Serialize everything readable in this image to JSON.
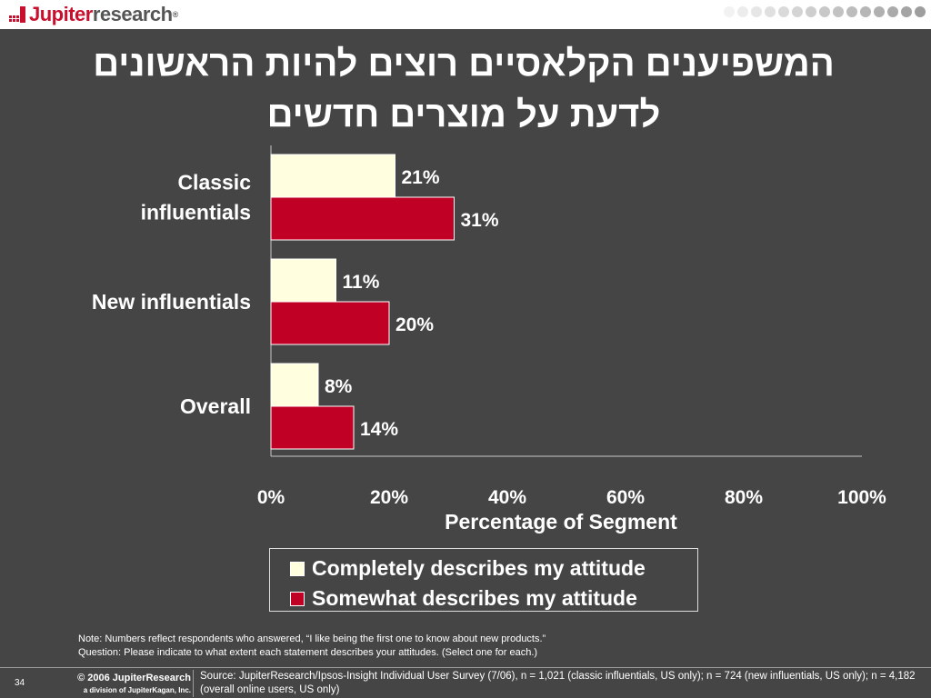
{
  "header": {
    "logo_text_1": "Jupiter",
    "logo_text_2": "research",
    "logo_reg": "®",
    "dot_colors": [
      "#f2f2f2",
      "#ececec",
      "#e6e6e6",
      "#e0e0e0",
      "#dadada",
      "#d4d4d4",
      "#cecece",
      "#c8c8c8",
      "#c2c2c2",
      "#bcbcbc",
      "#b6b6b6",
      "#b0b0b0",
      "#aaaaaa",
      "#a4a4a4",
      "#9e9e9e"
    ]
  },
  "slide": {
    "title_line1": "המשפיענים הקלאסיים רוצים להיות הראשונים",
    "title_line2": "לדעת על מוצרים חדשים"
  },
  "chart_data": {
    "type": "bar",
    "orientation": "horizontal",
    "categories": [
      "Classic influentials",
      "New influentials",
      "Overall"
    ],
    "category_label_lines": [
      [
        "Classic",
        "influentials"
      ],
      [
        "New influentials"
      ],
      [
        "Overall"
      ]
    ],
    "series": [
      {
        "name": "Completely describes my attitude",
        "values": [
          21,
          11,
          8
        ],
        "color": "#ffffe0"
      },
      {
        "name": "Somewhat describes my attitude",
        "values": [
          31,
          20,
          14
        ],
        "color": "#c00025"
      }
    ],
    "value_suffix": "%",
    "xlabel": "Percentage of Segment",
    "xlim": [
      0,
      100
    ],
    "xticks": [
      0,
      20,
      40,
      60,
      80,
      100
    ],
    "xtick_labels": [
      "0%",
      "20%",
      "40%",
      "60%",
      "80%",
      "100%"
    ],
    "grid": false,
    "legend_position": "bottom"
  },
  "legend": {
    "items": [
      {
        "label": "Completely describes my attitude",
        "color": "#ffffe0"
      },
      {
        "label": "Somewhat describes my attitude",
        "color": "#c00025"
      }
    ]
  },
  "note": {
    "line1": "Note: Numbers reflect respondents who answered, “I like being the first one to know about new products.”",
    "line2": "Question: Please indicate to what extent each statement describes your attitudes. (Select one for each.)"
  },
  "footer": {
    "page_number": "34",
    "copyright": "© 2006 JupiterResearch",
    "division": "a division of JupiterKagan, Inc.",
    "source": "Source: JupiterResearch/Ipsos-Insight Individual User Survey (7/06), n = 1,021 (classic influentials, US only); n = 724 (new influentials, US only); n = 4,182 (overall online users, US only)"
  }
}
